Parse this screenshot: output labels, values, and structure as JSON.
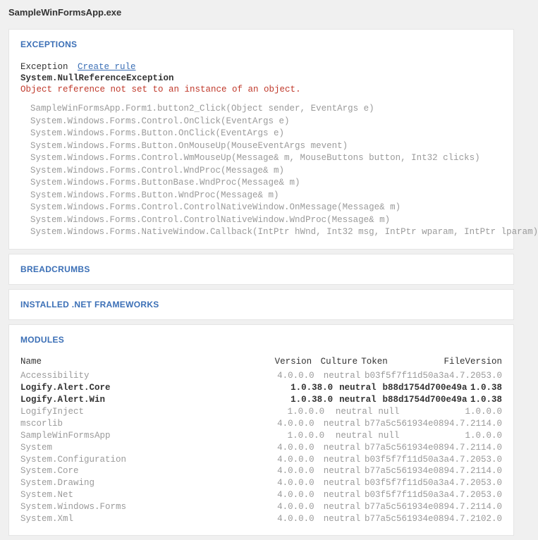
{
  "header": {
    "title": "SampleWinFormsApp.exe"
  },
  "exceptions": {
    "heading": "EXCEPTIONS",
    "label": "Exception",
    "create_rule": "Create rule",
    "type": "System.NullReferenceException",
    "message": "Object reference not set to an instance of an object.",
    "stack": [
      "SampleWinFormsApp.Form1.button2_Click(Object sender, EventArgs e)",
      "System.Windows.Forms.Control.OnClick(EventArgs e)",
      "System.Windows.Forms.Button.OnClick(EventArgs e)",
      "System.Windows.Forms.Button.OnMouseUp(MouseEventArgs mevent)",
      "System.Windows.Forms.Control.WmMouseUp(Message& m, MouseButtons button, Int32 clicks)",
      "System.Windows.Forms.Control.WndProc(Message& m)",
      "System.Windows.Forms.ButtonBase.WndProc(Message& m)",
      "System.Windows.Forms.Button.WndProc(Message& m)",
      "System.Windows.Forms.Control.ControlNativeWindow.OnMessage(Message& m)",
      "System.Windows.Forms.Control.ControlNativeWindow.WndProc(Message& m)",
      "System.Windows.Forms.NativeWindow.Callback(IntPtr hWnd, Int32 msg, IntPtr wparam, IntPtr lparam)"
    ]
  },
  "breadcrumbs": {
    "heading": "BREADCRUMBS"
  },
  "frameworks": {
    "heading": "INSTALLED .NET FRAMEWORKS"
  },
  "modules": {
    "heading": "MODULES",
    "columns": {
      "name": "Name",
      "version": "Version",
      "culture": "Culture",
      "token": "Token",
      "file_version": "FileVersion"
    },
    "rows": [
      {
        "name": "Accessibility",
        "version": "4.0.0.0",
        "culture": "neutral",
        "token": "b03f5f7f11d50a3a",
        "file_version": "4.7.2053.0",
        "bold": false
      },
      {
        "name": "Logify.Alert.Core",
        "version": "1.0.38.0",
        "culture": "neutral",
        "token": "b88d1754d700e49a",
        "file_version": "1.0.38",
        "bold": true
      },
      {
        "name": "Logify.Alert.Win",
        "version": "1.0.38.0",
        "culture": "neutral",
        "token": "b88d1754d700e49a",
        "file_version": "1.0.38",
        "bold": true
      },
      {
        "name": "LogifyInject",
        "version": "1.0.0.0",
        "culture": "neutral",
        "token": "null",
        "file_version": "1.0.0.0",
        "bold": false
      },
      {
        "name": "mscorlib",
        "version": "4.0.0.0",
        "culture": "neutral",
        "token": "b77a5c561934e089",
        "file_version": "4.7.2114.0",
        "bold": false
      },
      {
        "name": "SampleWinFormsApp",
        "version": "1.0.0.0",
        "culture": "neutral",
        "token": "null",
        "file_version": "1.0.0.0",
        "bold": false
      },
      {
        "name": "System",
        "version": "4.0.0.0",
        "culture": "neutral",
        "token": "b77a5c561934e089",
        "file_version": "4.7.2114.0",
        "bold": false
      },
      {
        "name": "System.Configuration",
        "version": "4.0.0.0",
        "culture": "neutral",
        "token": "b03f5f7f11d50a3a",
        "file_version": "4.7.2053.0",
        "bold": false
      },
      {
        "name": "System.Core",
        "version": "4.0.0.0",
        "culture": "neutral",
        "token": "b77a5c561934e089",
        "file_version": "4.7.2114.0",
        "bold": false
      },
      {
        "name": "System.Drawing",
        "version": "4.0.0.0",
        "culture": "neutral",
        "token": "b03f5f7f11d50a3a",
        "file_version": "4.7.2053.0",
        "bold": false
      },
      {
        "name": "System.Net",
        "version": "4.0.0.0",
        "culture": "neutral",
        "token": "b03f5f7f11d50a3a",
        "file_version": "4.7.2053.0",
        "bold": false
      },
      {
        "name": "System.Windows.Forms",
        "version": "4.0.0.0",
        "culture": "neutral",
        "token": "b77a5c561934e089",
        "file_version": "4.7.2114.0",
        "bold": false
      },
      {
        "name": "System.Xml",
        "version": "4.0.0.0",
        "culture": "neutral",
        "token": "b77a5c561934e089",
        "file_version": "4.7.2102.0",
        "bold": false
      }
    ]
  }
}
